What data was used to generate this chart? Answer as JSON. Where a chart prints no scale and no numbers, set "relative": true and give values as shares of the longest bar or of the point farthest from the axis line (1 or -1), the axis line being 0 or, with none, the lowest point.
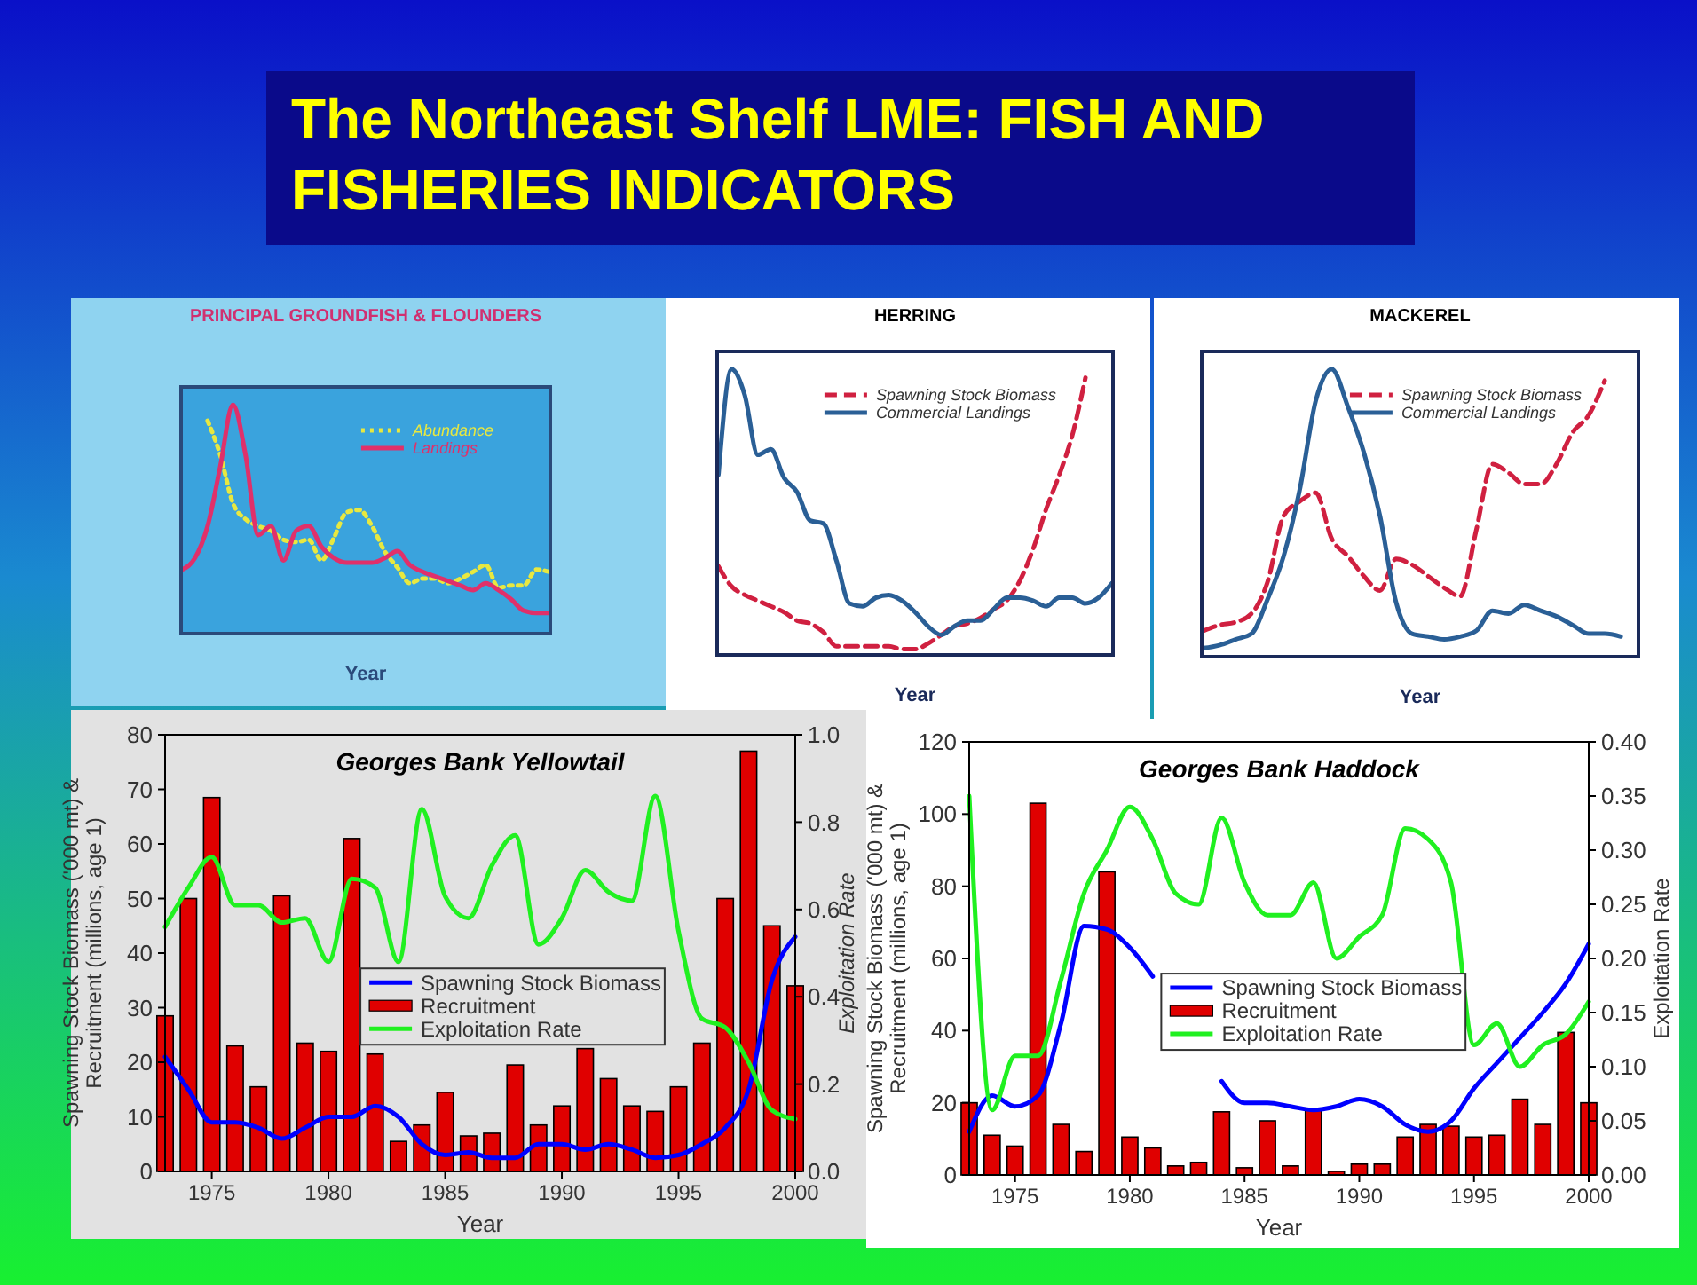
{
  "chart_data": [
    {
      "type": "other",
      "title": "The Northeast Shelf LME: FISH AND FISHERIES INDICATORS"
    },
    {
      "type": "line",
      "title": "PRINCIPAL GROUNDFISH & FLOUNDERS",
      "xlabel": "Year",
      "relative": true,
      "legend": "top right",
      "categories": [
        null,
        null,
        null,
        null,
        null,
        null,
        null,
        null,
        null,
        null,
        null,
        null,
        null,
        null,
        null,
        null,
        null,
        null,
        null,
        null,
        null,
        null,
        null,
        null,
        null,
        null,
        null,
        null,
        null,
        null
      ],
      "series": [
        {
          "name": "Abundance",
          "color": "#e8e840",
          "line_style": "dotted",
          "values": [
            null,
            null,
            0.93,
            0.78,
            0.57,
            0.5,
            0.47,
            0.45,
            0.41,
            0.4,
            0.41,
            0.32,
            0.42,
            0.53,
            0.54,
            0.47,
            0.36,
            0.29,
            0.22,
            0.24,
            0.24,
            0.22,
            0.24,
            0.27,
            0.3,
            0.2,
            0.21,
            0.21,
            0.28,
            0.27
          ]
        },
        {
          "name": "Landings",
          "color": "#e0306a",
          "line_style": "solid",
          "values": [
            0.28,
            0.33,
            0.47,
            0.73,
            1.0,
            0.78,
            0.43,
            0.47,
            0.32,
            0.45,
            0.47,
            0.38,
            0.33,
            0.31,
            0.31,
            0.31,
            0.33,
            0.36,
            0.3,
            0.27,
            0.25,
            0.23,
            0.21,
            0.19,
            0.22,
            0.19,
            0.15,
            0.1,
            0.09,
            0.09
          ]
        }
      ]
    },
    {
      "type": "line",
      "title": "HERRING",
      "xlabel": "Year",
      "relative": true,
      "legend": "top right",
      "categories": [
        null,
        null,
        null,
        null,
        null,
        null,
        null,
        null,
        null,
        null,
        null,
        null,
        null,
        null,
        null,
        null,
        null,
        null,
        null,
        null,
        null,
        null,
        null,
        null,
        null,
        null,
        null,
        null,
        null,
        null,
        null
      ],
      "series": [
        {
          "name": "Spawning Stock Biomass",
          "color": "#d02040",
          "line_style": "dashed",
          "values": [
            0.31,
            0.24,
            0.21,
            0.19,
            0.17,
            0.15,
            0.12,
            0.11,
            0.08,
            0.03,
            0.03,
            0.03,
            0.03,
            0.03,
            0.02,
            0.02,
            0.04,
            0.07,
            0.1,
            0.11,
            0.13,
            0.16,
            0.19,
            0.26,
            0.37,
            0.51,
            0.63,
            0.77,
            0.97,
            null,
            null
          ]
        },
        {
          "name": "Commercial Landings",
          "color": "#2a5f96",
          "line_style": "solid",
          "values": [
            0.63,
            1.0,
            0.91,
            0.7,
            0.72,
            0.62,
            0.57,
            0.47,
            0.46,
            0.33,
            0.18,
            0.17,
            0.2,
            0.21,
            0.19,
            0.15,
            0.1,
            0.07,
            0.1,
            0.12,
            0.12,
            0.16,
            0.2,
            0.2,
            0.19,
            0.17,
            0.2,
            0.2,
            0.18,
            0.2,
            0.25
          ]
        }
      ]
    },
    {
      "type": "line",
      "title": "MACKEREL",
      "xlabel": "Year",
      "relative": true,
      "legend": "top right",
      "categories": [
        null,
        null,
        null,
        null,
        null,
        null,
        null,
        null,
        null,
        null,
        null,
        null,
        null,
        null,
        null,
        null,
        null,
        null,
        null,
        null,
        null,
        null,
        null,
        null,
        null,
        null,
        null,
        null
      ],
      "series": [
        {
          "name": "Spawning Stock Biomass",
          "color": "#d02040",
          "line_style": "dashed",
          "values": [
            0.09,
            0.11,
            0.12,
            0.15,
            0.26,
            0.49,
            0.54,
            0.57,
            0.41,
            0.35,
            0.28,
            0.23,
            0.34,
            0.32,
            0.28,
            0.24,
            0.21,
            0.44,
            0.67,
            0.64,
            0.6,
            0.6,
            0.67,
            0.78,
            0.84,
            0.96,
            null,
            null
          ]
        },
        {
          "name": "Commercial Landings",
          "color": "#2a5f96",
          "line_style": "solid",
          "values": [
            0.03,
            0.04,
            0.06,
            0.08,
            0.2,
            0.35,
            0.58,
            0.89,
            1.0,
            0.87,
            0.71,
            0.49,
            0.19,
            0.08,
            0.07,
            0.06,
            0.07,
            0.09,
            0.16,
            0.15,
            0.18,
            0.16,
            0.14,
            0.11,
            0.08,
            0.08,
            0.07,
            null
          ]
        }
      ]
    },
    {
      "type": "bar",
      "title": "Georges Bank Yellowtail",
      "xlabel": "Year",
      "ylabel": "Spawning Stock Biomass ('000 mt) & Recruitment (millions, age 1)",
      "y2label": "Exploitation Rate",
      "legend": "center",
      "x": [
        1973,
        1974,
        1975,
        1976,
        1977,
        1978,
        1979,
        1980,
        1981,
        1982,
        1983,
        1984,
        1985,
        1986,
        1987,
        1988,
        1989,
        1990,
        1991,
        1992,
        1993,
        1994,
        1995,
        1996,
        1997,
        1998,
        1999,
        2000
      ],
      "xlim": [
        1973,
        2000
      ],
      "xticks": [
        1975,
        1980,
        1985,
        1990,
        1995,
        2000
      ],
      "ylim": [
        0,
        80
      ],
      "yticks": [
        0,
        10,
        20,
        30,
        40,
        50,
        60,
        70,
        80
      ],
      "y2lim": [
        0,
        1
      ],
      "y2ticks": [
        {
          "value": 0,
          "label": "0.0"
        },
        {
          "value": 0.2,
          "label": "0.2"
        },
        {
          "value": 0.4,
          "label": "0.4"
        },
        {
          "value": 0.6,
          "label": "0.6"
        },
        {
          "value": 0.8,
          "label": "0.8"
        },
        {
          "value": 1,
          "label": "1.0"
        }
      ],
      "series": [
        {
          "name": "Spawning Stock Biomass",
          "type": "line",
          "color": "#0000ff",
          "values": [
            21,
            15,
            9,
            9,
            8,
            6,
            8,
            10,
            10,
            12,
            10,
            5,
            3,
            3.5,
            2.5,
            2.5,
            5,
            5,
            4,
            5,
            4,
            2.5,
            3,
            5,
            8,
            15,
            35,
            43
          ]
        },
        {
          "name": "Recruitment",
          "type": "bar",
          "color": "#e00000",
          "values": [
            28.5,
            50,
            68.5,
            23,
            15.5,
            50.5,
            23.5,
            22,
            61,
            21.5,
            5.5,
            8.5,
            14.5,
            6.5,
            7,
            19.5,
            8.5,
            12,
            22.5,
            17,
            12,
            11,
            15.5,
            23.5,
            50,
            77,
            45,
            34
          ]
        },
        {
          "name": "Exploitation Rate",
          "type": "line",
          "axis": "y2",
          "color": "#20f020",
          "values": [
            0.56,
            0.65,
            0.72,
            0.61,
            0.61,
            0.57,
            0.58,
            0.48,
            0.67,
            0.65,
            0.48,
            0.83,
            0.63,
            0.58,
            0.7,
            0.77,
            0.52,
            0.58,
            0.69,
            0.64,
            0.62,
            0.86,
            0.55,
            0.35,
            0.33,
            0.25,
            0.14,
            0.12
          ]
        }
      ]
    },
    {
      "type": "bar",
      "title": "Georges Bank Haddock",
      "xlabel": "Year",
      "ylabel": "Spawning Stock Biomass ('000 mt) & Recruitment (millions, age 1)",
      "y2label": "Exploitation Rate",
      "legend": "center",
      "x": [
        1973,
        1974,
        1975,
        1976,
        1977,
        1978,
        1979,
        1980,
        1981,
        1982,
        1983,
        1984,
        1985,
        1986,
        1987,
        1988,
        1989,
        1990,
        1991,
        1992,
        1993,
        1994,
        1995,
        1996,
        1997,
        1998,
        1999,
        2000
      ],
      "xlim": [
        1973,
        2000
      ],
      "xticks": [
        1975,
        1980,
        1985,
        1990,
        1995,
        2000
      ],
      "ylim": [
        0,
        120
      ],
      "yticks": [
        0,
        20,
        40,
        60,
        80,
        100,
        120
      ],
      "y2lim": [
        0,
        0.4
      ],
      "y2ticks": [
        {
          "value": 0,
          "label": "0.00"
        },
        {
          "value": 0.05,
          "label": "0.05"
        },
        {
          "value": 0.1,
          "label": "0.10"
        },
        {
          "value": 0.15,
          "label": "0.15"
        },
        {
          "value": 0.2,
          "label": "0.20"
        },
        {
          "value": 0.25,
          "label": "0.25"
        },
        {
          "value": 0.3,
          "label": "0.30"
        },
        {
          "value": 0.35,
          "label": "0.35"
        },
        {
          "value": 0.4,
          "label": "0.40"
        }
      ],
      "series": [
        {
          "name": "Spawning Stock Biomass",
          "type": "line",
          "color": "#0000ff",
          "values": [
            12,
            22,
            19,
            22,
            42,
            69,
            68,
            63,
            55,
            null,
            null,
            26,
            20,
            20,
            19,
            18,
            19,
            21,
            19,
            14,
            12,
            15,
            24,
            31,
            38,
            45,
            53,
            64
          ]
        },
        {
          "name": "Recruitment",
          "type": "bar",
          "color": "#e00000",
          "values": [
            20,
            11,
            8,
            103,
            14,
            6.5,
            84,
            10.5,
            7.5,
            2.5,
            3.5,
            17.5,
            2,
            15,
            2.5,
            18,
            1,
            3,
            3,
            10.5,
            14,
            13.5,
            10.5,
            11,
            21,
            14,
            39.5,
            20
          ]
        },
        {
          "name": "Exploitation Rate",
          "type": "line",
          "axis": "y2",
          "color": "#20f020",
          "values": [
            0.35,
            0.06,
            0.11,
            0.11,
            0.18,
            0.26,
            0.3,
            0.34,
            0.31,
            0.26,
            0.25,
            0.33,
            0.27,
            0.24,
            0.24,
            0.27,
            0.2,
            0.22,
            0.24,
            0.32,
            0.31,
            0.27,
            0.12,
            0.14,
            0.1,
            0.12,
            0.13,
            0.16
          ]
        }
      ]
    }
  ]
}
